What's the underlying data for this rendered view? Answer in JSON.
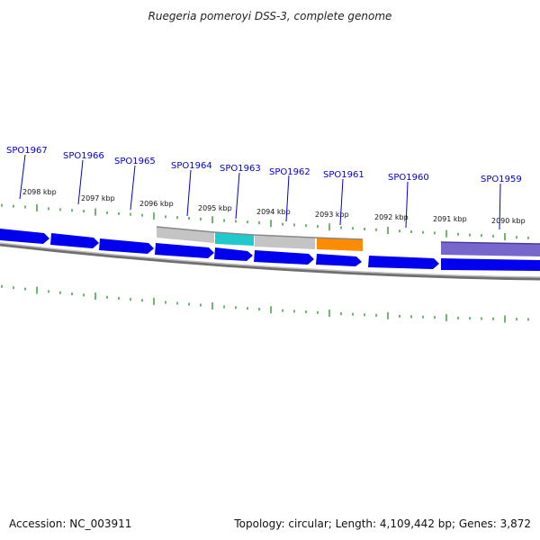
{
  "title": "Ruegeria pomeroyi DSS-3, complete genome",
  "footer": {
    "accession": "Accession: NC_003911",
    "summary": "Topology: circular; Length: 4,109,442 bp; Genes: 3,872"
  },
  "colors": {
    "cds": "#0000ee",
    "hypothetical": "#c4c4c4",
    "trna_like": "#1fc9cc",
    "orange_feature": "#ff8c00",
    "purple_feature": "#7766cc",
    "tick": "#2a8a2a",
    "label": "#0000cc"
  },
  "kbp_labels": [
    "2098 kbp",
    "2097 kbp",
    "2096 kbp",
    "2095 kbp",
    "2094 kbp",
    "2093 kbp",
    "2092 kbp",
    "2091 kbp",
    "2090 kbp"
  ],
  "gene_labels": [
    "SPO1967",
    "SPO1966",
    "SPO1965",
    "SPO1964",
    "SPO1963",
    "SPO1962",
    "SPO1961",
    "SPO1960",
    "SPO1959"
  ]
}
